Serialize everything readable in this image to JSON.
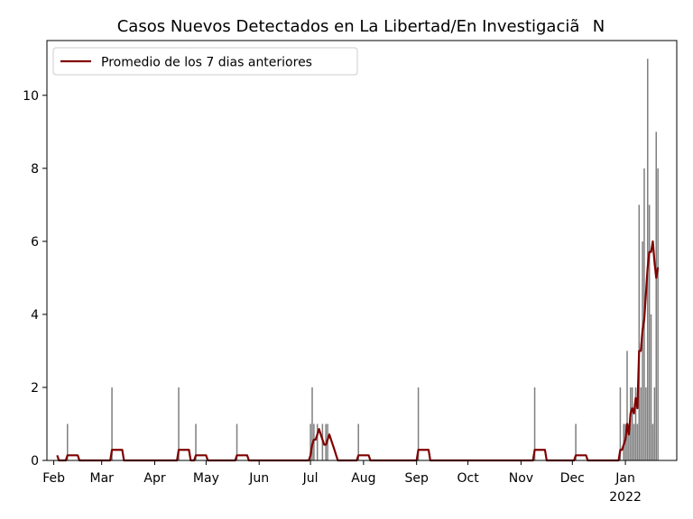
{
  "chart_data": {
    "type": "bar",
    "title": "Casos Nuevos Detectados en La Libertad/En InvestigaciãN",
    "xlabel": "",
    "ylabel": "",
    "ylim": [
      0,
      11.5
    ],
    "xlim": [
      "2021-01-28",
      "2022-01-31"
    ],
    "yticks": [
      0,
      2,
      4,
      6,
      8,
      10
    ],
    "xticks": [
      {
        "date": "2021-02-01",
        "label": "Feb"
      },
      {
        "date": "2021-03-01",
        "label": "Mar"
      },
      {
        "date": "2021-04-01",
        "label": "Apr"
      },
      {
        "date": "2021-05-01",
        "label": "May"
      },
      {
        "date": "2021-06-01",
        "label": "Jun"
      },
      {
        "date": "2021-07-01",
        "label": "Jul"
      },
      {
        "date": "2021-08-01",
        "label": "Aug"
      },
      {
        "date": "2021-09-01",
        "label": "Sep"
      },
      {
        "date": "2021-10-01",
        "label": "Oct"
      },
      {
        "date": "2021-11-01",
        "label": "Nov"
      },
      {
        "date": "2021-12-01",
        "label": "Dec"
      },
      {
        "date": "2022-01-01",
        "label": "Jan",
        "sublabel": "2022"
      }
    ],
    "legend": {
      "position": "top-left",
      "entries": [
        "Promedio de los 7 dias anteriores"
      ]
    },
    "grid": false,
    "colors": {
      "bars": "#808080",
      "line": "#800000"
    },
    "series": [
      {
        "type": "bar",
        "points": [
          {
            "x": "2021-02-09",
            "y": 1
          },
          {
            "x": "2021-03-07",
            "y": 2
          },
          {
            "x": "2021-04-15",
            "y": 2
          },
          {
            "x": "2021-04-25",
            "y": 1
          },
          {
            "x": "2021-05-19",
            "y": 1
          },
          {
            "x": "2021-07-01",
            "y": 1
          },
          {
            "x": "2021-07-02",
            "y": 2
          },
          {
            "x": "2021-07-03",
            "y": 1
          },
          {
            "x": "2021-07-05",
            "y": 1
          },
          {
            "x": "2021-07-08",
            "y": 1
          },
          {
            "x": "2021-07-10",
            "y": 1
          },
          {
            "x": "2021-07-11",
            "y": 1
          },
          {
            "x": "2021-07-29",
            "y": 1
          },
          {
            "x": "2021-09-02",
            "y": 2
          },
          {
            "x": "2021-11-09",
            "y": 2
          },
          {
            "x": "2021-12-03",
            "y": 1
          },
          {
            "x": "2021-12-29",
            "y": 2
          },
          {
            "x": "2021-12-31",
            "y": 1
          },
          {
            "x": "2022-01-01",
            "y": 1
          },
          {
            "x": "2022-01-02",
            "y": 3
          },
          {
            "x": "2022-01-03",
            "y": 1
          },
          {
            "x": "2022-01-04",
            "y": 2
          },
          {
            "x": "2022-01-05",
            "y": 2
          },
          {
            "x": "2022-01-06",
            "y": 1
          },
          {
            "x": "2022-01-07",
            "y": 2
          },
          {
            "x": "2022-01-08",
            "y": 1
          },
          {
            "x": "2022-01-09",
            "y": 7
          },
          {
            "x": "2022-01-10",
            "y": 2
          },
          {
            "x": "2022-01-11",
            "y": 6
          },
          {
            "x": "2022-01-12",
            "y": 8
          },
          {
            "x": "2022-01-13",
            "y": 2
          },
          {
            "x": "2022-01-14",
            "y": 11
          },
          {
            "x": "2022-01-15",
            "y": 7
          },
          {
            "x": "2022-01-16",
            "y": 4
          },
          {
            "x": "2022-01-17",
            "y": 1
          },
          {
            "x": "2022-01-18",
            "y": 2
          },
          {
            "x": "2022-01-19",
            "y": 9
          },
          {
            "x": "2022-01-20",
            "y": 8
          }
        ]
      },
      {
        "type": "line",
        "name": "Promedio de los 7 dias anteriores",
        "points": [
          {
            "x": "2021-02-03",
            "y": 0.14
          },
          {
            "x": "2021-02-04",
            "y": 0
          },
          {
            "x": "2021-02-08",
            "y": 0
          },
          {
            "x": "2021-02-09",
            "y": 0.14
          },
          {
            "x": "2021-02-15",
            "y": 0.14
          },
          {
            "x": "2021-02-16",
            "y": 0
          },
          {
            "x": "2021-03-06",
            "y": 0
          },
          {
            "x": "2021-03-07",
            "y": 0.29
          },
          {
            "x": "2021-03-13",
            "y": 0.29
          },
          {
            "x": "2021-03-14",
            "y": 0
          },
          {
            "x": "2021-04-14",
            "y": 0
          },
          {
            "x": "2021-04-15",
            "y": 0.29
          },
          {
            "x": "2021-04-21",
            "y": 0.29
          },
          {
            "x": "2021-04-22",
            "y": 0
          },
          {
            "x": "2021-04-24",
            "y": 0
          },
          {
            "x": "2021-04-25",
            "y": 0.14
          },
          {
            "x": "2021-05-01",
            "y": 0.14
          },
          {
            "x": "2021-05-02",
            "y": 0
          },
          {
            "x": "2021-05-18",
            "y": 0
          },
          {
            "x": "2021-05-19",
            "y": 0.14
          },
          {
            "x": "2021-05-25",
            "y": 0.14
          },
          {
            "x": "2021-05-26",
            "y": 0
          },
          {
            "x": "2021-06-30",
            "y": 0
          },
          {
            "x": "2021-07-01",
            "y": 0.14
          },
          {
            "x": "2021-07-02",
            "y": 0.43
          },
          {
            "x": "2021-07-03",
            "y": 0.57
          },
          {
            "x": "2021-07-04",
            "y": 0.57
          },
          {
            "x": "2021-07-05",
            "y": 0.71
          },
          {
            "x": "2021-07-06",
            "y": 0.86
          },
          {
            "x": "2021-07-07",
            "y": 0.71
          },
          {
            "x": "2021-07-08",
            "y": 0.57
          },
          {
            "x": "2021-07-09",
            "y": 0.43
          },
          {
            "x": "2021-07-10",
            "y": 0.43
          },
          {
            "x": "2021-07-11",
            "y": 0.57
          },
          {
            "x": "2021-07-12",
            "y": 0.71
          },
          {
            "x": "2021-07-13",
            "y": 0.57
          },
          {
            "x": "2021-07-14",
            "y": 0.43
          },
          {
            "x": "2021-07-15",
            "y": 0.29
          },
          {
            "x": "2021-07-16",
            "y": 0.14
          },
          {
            "x": "2021-07-17",
            "y": 0
          },
          {
            "x": "2021-07-28",
            "y": 0
          },
          {
            "x": "2021-07-29",
            "y": 0.14
          },
          {
            "x": "2021-08-04",
            "y": 0.14
          },
          {
            "x": "2021-08-05",
            "y": 0
          },
          {
            "x": "2021-09-01",
            "y": 0
          },
          {
            "x": "2021-09-02",
            "y": 0.29
          },
          {
            "x": "2021-09-08",
            "y": 0.29
          },
          {
            "x": "2021-09-09",
            "y": 0
          },
          {
            "x": "2021-11-08",
            "y": 0
          },
          {
            "x": "2021-11-09",
            "y": 0.29
          },
          {
            "x": "2021-11-15",
            "y": 0.29
          },
          {
            "x": "2021-11-16",
            "y": 0
          },
          {
            "x": "2021-12-02",
            "y": 0
          },
          {
            "x": "2021-12-03",
            "y": 0.14
          },
          {
            "x": "2021-12-09",
            "y": 0.14
          },
          {
            "x": "2021-12-10",
            "y": 0
          },
          {
            "x": "2021-12-28",
            "y": 0
          },
          {
            "x": "2021-12-29",
            "y": 0.29
          },
          {
            "x": "2021-12-30",
            "y": 0.29
          },
          {
            "x": "2021-12-31",
            "y": 0.43
          },
          {
            "x": "2022-01-01",
            "y": 0.57
          },
          {
            "x": "2022-01-02",
            "y": 1.0
          },
          {
            "x": "2022-01-03",
            "y": 0.71
          },
          {
            "x": "2022-01-04",
            "y": 1.29
          },
          {
            "x": "2022-01-05",
            "y": 1.43
          },
          {
            "x": "2022-01-06",
            "y": 1.29
          },
          {
            "x": "2022-01-07",
            "y": 1.71
          },
          {
            "x": "2022-01-08",
            "y": 1.43
          },
          {
            "x": "2022-01-09",
            "y": 3.0
          },
          {
            "x": "2022-01-10",
            "y": 3.0
          },
          {
            "x": "2022-01-11",
            "y": 3.57
          },
          {
            "x": "2022-01-12",
            "y": 3.86
          },
          {
            "x": "2022-01-13",
            "y": 4.57
          },
          {
            "x": "2022-01-14",
            "y": 5.29
          },
          {
            "x": "2022-01-15",
            "y": 5.71
          },
          {
            "x": "2022-01-16",
            "y": 5.71
          },
          {
            "x": "2022-01-17",
            "y": 6.0
          },
          {
            "x": "2022-01-18",
            "y": 5.43
          },
          {
            "x": "2022-01-19",
            "y": 5.0
          },
          {
            "x": "2022-01-20",
            "y": 5.29
          }
        ]
      }
    ]
  }
}
